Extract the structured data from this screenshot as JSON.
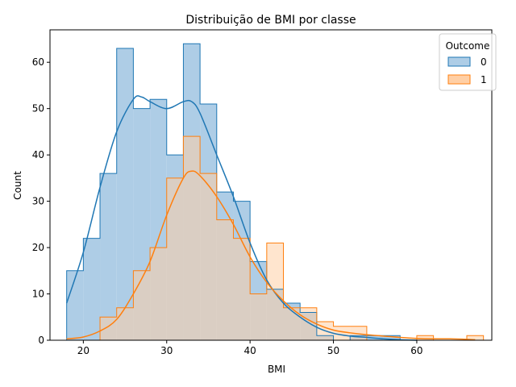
{
  "chart_data": {
    "type": "histogram",
    "title": "Distribuição de BMI por classe",
    "xlabel": "BMI",
    "ylabel": "Count",
    "xlim": [
      16,
      69
    ],
    "ylim": [
      0,
      67
    ],
    "xticks": [
      20,
      30,
      40,
      50,
      60
    ],
    "yticks": [
      0,
      10,
      20,
      30,
      40,
      50,
      60
    ],
    "grid": false,
    "legend": {
      "title": "Outcome",
      "placement": "top-right"
    },
    "bin_width": 2,
    "series": [
      {
        "name": "0",
        "color": "#1f77b4",
        "fill": "#aecde6",
        "bins": [
          [
            18,
            15
          ],
          [
            20,
            22
          ],
          [
            22,
            36
          ],
          [
            24,
            63
          ],
          [
            26,
            50
          ],
          [
            28,
            52
          ],
          [
            30,
            40
          ],
          [
            32,
            64
          ],
          [
            34,
            51
          ],
          [
            36,
            32
          ],
          [
            38,
            30
          ],
          [
            40,
            17
          ],
          [
            42,
            11
          ],
          [
            44,
            8
          ],
          [
            46,
            6
          ],
          [
            48,
            1
          ],
          [
            50,
            0
          ],
          [
            52,
            1
          ],
          [
            54,
            1
          ],
          [
            56,
            1
          ]
        ],
        "kde": [
          [
            18,
            8
          ],
          [
            20,
            19
          ],
          [
            22,
            33
          ],
          [
            24,
            45
          ],
          [
            26,
            52
          ],
          [
            27,
            52.5
          ],
          [
            28,
            51.5
          ],
          [
            30,
            50
          ],
          [
            32,
            51.5
          ],
          [
            33,
            51.5
          ],
          [
            34,
            49
          ],
          [
            36,
            40
          ],
          [
            38,
            31
          ],
          [
            40,
            21
          ],
          [
            42,
            13
          ],
          [
            44,
            8
          ],
          [
            46,
            5
          ],
          [
            48,
            2.8
          ],
          [
            50,
            1.5
          ],
          [
            52,
            0.9
          ],
          [
            54,
            0.6
          ],
          [
            56,
            0.3
          ],
          [
            58,
            0.1
          ],
          [
            60,
            0
          ]
        ]
      },
      {
        "name": "1",
        "color": "#ff7f0e",
        "fill": "#ffcfa5",
        "bins": [
          [
            18,
            0
          ],
          [
            20,
            0
          ],
          [
            22,
            5
          ],
          [
            24,
            7
          ],
          [
            26,
            15
          ],
          [
            28,
            20
          ],
          [
            30,
            35
          ],
          [
            32,
            44
          ],
          [
            34,
            36
          ],
          [
            36,
            26
          ],
          [
            38,
            22
          ],
          [
            40,
            10
          ],
          [
            42,
            21
          ],
          [
            44,
            7
          ],
          [
            46,
            7
          ],
          [
            48,
            4
          ],
          [
            50,
            3
          ],
          [
            52,
            3
          ],
          [
            54,
            0
          ],
          [
            56,
            0
          ],
          [
            58,
            0
          ],
          [
            60,
            1
          ],
          [
            62,
            0
          ],
          [
            64,
            0
          ],
          [
            66,
            1
          ]
        ],
        "kde": [
          [
            18,
            0.3
          ],
          [
            20,
            0.7
          ],
          [
            22,
            2
          ],
          [
            24,
            4.5
          ],
          [
            26,
            10
          ],
          [
            28,
            17
          ],
          [
            30,
            27
          ],
          [
            32,
            35
          ],
          [
            33,
            36.5
          ],
          [
            34,
            35.5
          ],
          [
            36,
            31
          ],
          [
            38,
            25
          ],
          [
            40,
            18
          ],
          [
            42,
            12.5
          ],
          [
            44,
            8.5
          ],
          [
            46,
            5.5
          ],
          [
            48,
            3.5
          ],
          [
            50,
            2.2
          ],
          [
            52,
            1.6
          ],
          [
            54,
            1.2
          ],
          [
            56,
            0.9
          ],
          [
            58,
            0.6
          ],
          [
            60,
            0.4
          ],
          [
            62,
            0.3
          ],
          [
            64,
            0.3
          ],
          [
            66,
            0.2
          ],
          [
            67,
            0.1
          ]
        ]
      }
    ]
  }
}
